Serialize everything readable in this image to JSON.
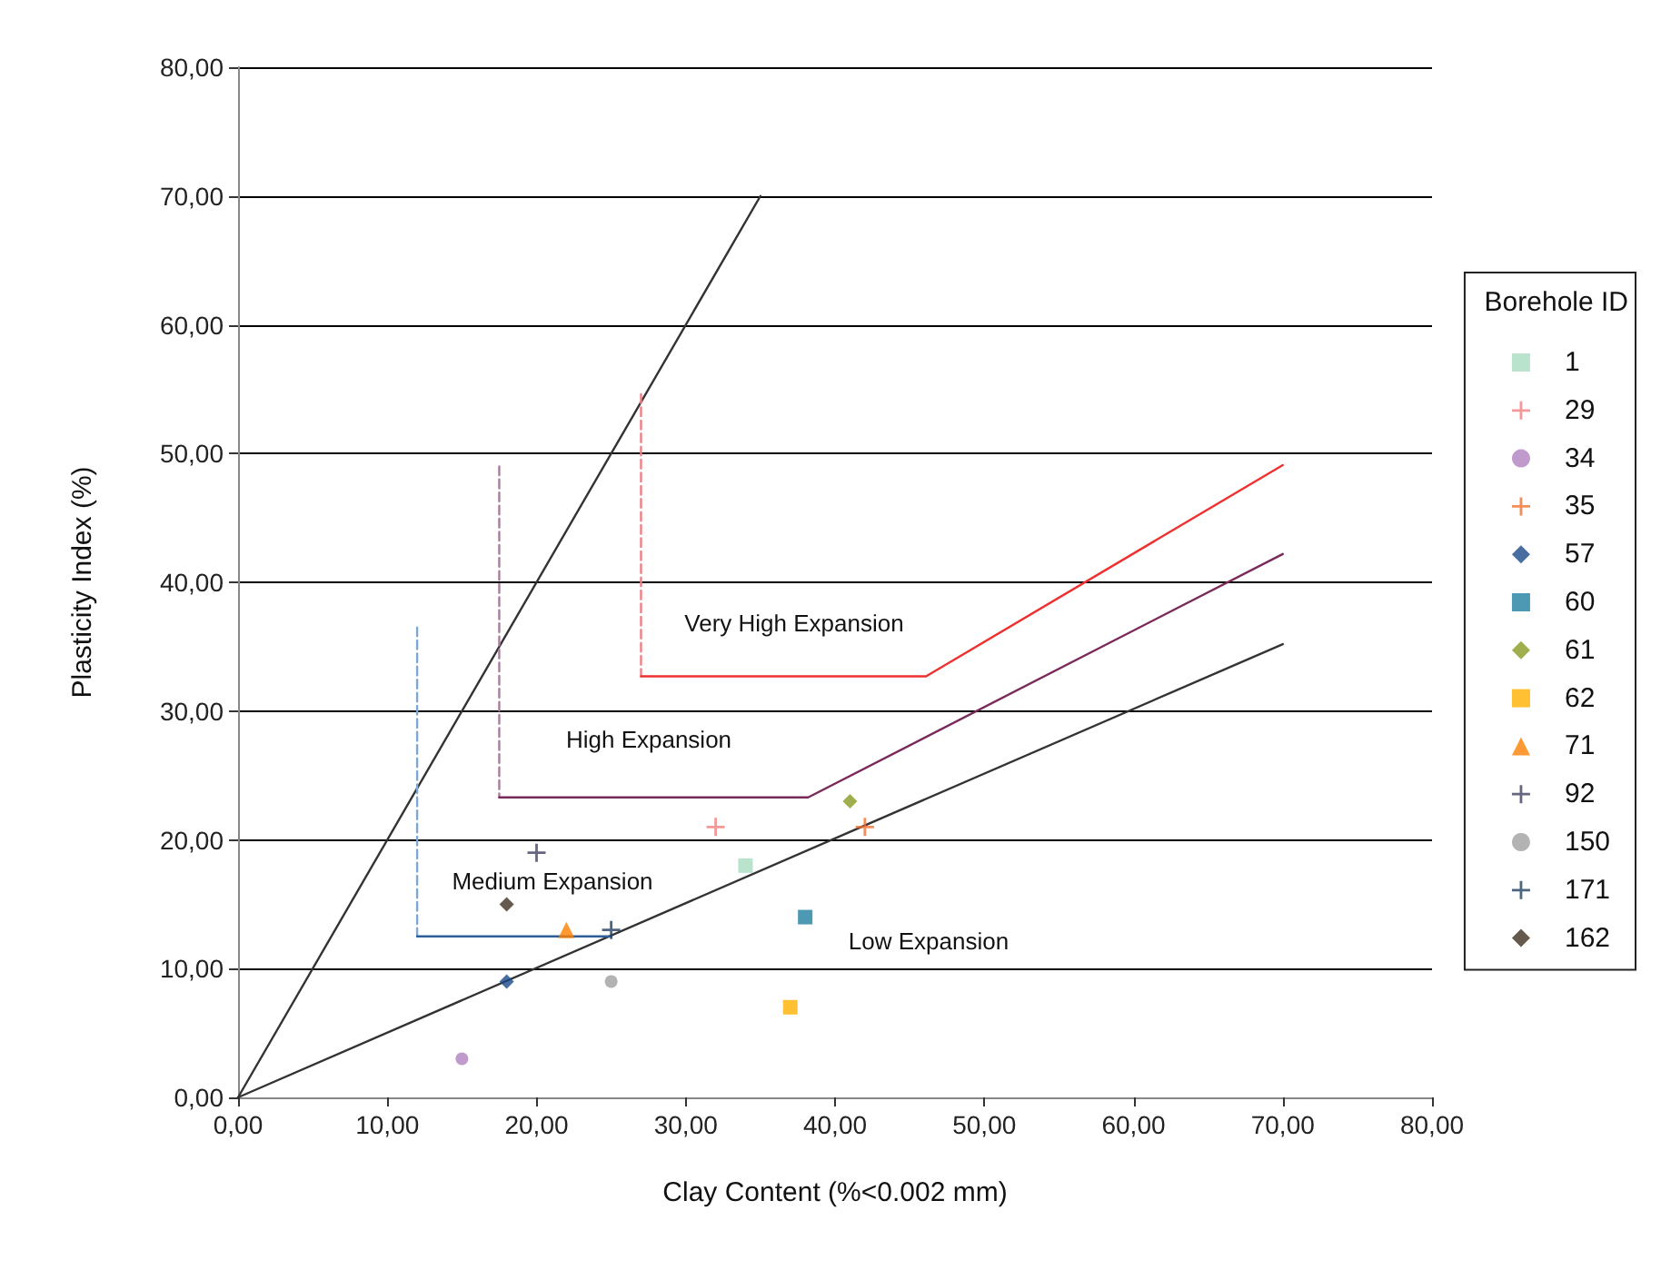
{
  "chart_data": {
    "type": "scatter",
    "xlabel": "Clay Content (%<0.002 mm)",
    "ylabel": "Plasticity Index (%)",
    "legend_title": "Borehole ID",
    "legend": "right",
    "grid": "y",
    "xlim": [
      0,
      80
    ],
    "ylim": [
      0,
      80
    ],
    "xticks": [
      {
        "value": 0,
        "label": "0,00"
      },
      {
        "value": 10,
        "label": "10,00"
      },
      {
        "value": 20,
        "label": "20,00"
      },
      {
        "value": 30,
        "label": "30,00"
      },
      {
        "value": 40,
        "label": "40,00"
      },
      {
        "value": 50,
        "label": "50,00"
      },
      {
        "value": 60,
        "label": "60,00"
      },
      {
        "value": 70,
        "label": "70,00"
      },
      {
        "value": 80,
        "label": "80,00"
      }
    ],
    "yticks": [
      {
        "value": 0,
        "label": "0,00"
      },
      {
        "value": 10,
        "label": "10,00"
      },
      {
        "value": 20,
        "label": "20,00"
      },
      {
        "value": 30,
        "label": "30,00"
      },
      {
        "value": 40,
        "label": "40,00"
      },
      {
        "value": 50,
        "label": "50,00"
      },
      {
        "value": 60,
        "label": "60,00"
      },
      {
        "value": 70,
        "label": "70,00"
      },
      {
        "value": 80,
        "label": "80,00"
      }
    ],
    "annotations": [
      "Very High Expansion",
      "High Expansion",
      "Medium Expansion",
      "Low Expansion"
    ],
    "series": [
      {
        "name": "1",
        "color": "#a8dcc0",
        "marker": "square",
        "x": [
          34
        ],
        "values": [
          18
        ]
      },
      {
        "name": "29",
        "color": "#f08080",
        "marker": "cross",
        "x": [
          32
        ],
        "values": [
          21
        ]
      },
      {
        "name": "34",
        "color": "#b080c0",
        "marker": "circle",
        "x": [
          15
        ],
        "values": [
          3
        ]
      },
      {
        "name": "35",
        "color": "#f07030",
        "marker": "cross",
        "x": [
          42
        ],
        "values": [
          21
        ]
      },
      {
        "name": "57",
        "color": "#1a4a8a",
        "marker": "diamond",
        "x": [
          18
        ],
        "values": [
          9
        ]
      },
      {
        "name": "60",
        "color": "#2080a0",
        "marker": "square",
        "x": [
          38
        ],
        "values": [
          14
        ]
      },
      {
        "name": "61",
        "color": "#8a9a20",
        "marker": "diamond",
        "x": [
          41
        ],
        "values": [
          23
        ]
      },
      {
        "name": "62",
        "color": "#ffb000",
        "marker": "square",
        "x": [
          37
        ],
        "values": [
          7
        ]
      },
      {
        "name": "71",
        "color": "#ff8000",
        "marker": "triangle",
        "x": [
          22
        ],
        "values": [
          13
        ]
      },
      {
        "name": "92",
        "color": "#404060",
        "marker": "cross",
        "x": [
          20
        ],
        "values": [
          19
        ]
      },
      {
        "name": "150",
        "color": "#a0a0a0",
        "marker": "circle",
        "x": [
          25
        ],
        "values": [
          9
        ]
      },
      {
        "name": "171",
        "color": "#204060",
        "marker": "cross",
        "x": [
          25
        ],
        "values": [
          13
        ]
      },
      {
        "name": "162",
        "color": "#403020",
        "marker": "diamond",
        "x": [
          18
        ],
        "values": [
          15
        ]
      },
      {
        "type": "line",
        "color": "#333333",
        "marker": "none",
        "line_style": "solid",
        "x": [
          0,
          35
        ],
        "values": [
          0,
          70
        ]
      },
      {
        "type": "line",
        "color": "#333333",
        "marker": "none",
        "line_style": "solid",
        "x": [
          0,
          70
        ],
        "values": [
          0,
          35.2
        ]
      },
      {
        "type": "line",
        "color": "#7fa7d0",
        "marker": "none",
        "line_style": "dashed",
        "x": [
          12,
          12
        ],
        "values": [
          36.5,
          12.5
        ]
      },
      {
        "type": "line",
        "color": "#2f5f9a",
        "marker": "none",
        "line_style": "solid",
        "x": [
          12,
          25
        ],
        "values": [
          12.5,
          12.5
        ]
      },
      {
        "type": "line",
        "color": "#a87c9a",
        "marker": "none",
        "line_style": "dashed",
        "x": [
          17.5,
          17.5
        ],
        "values": [
          49,
          23.3
        ]
      },
      {
        "type": "line",
        "color": "#7a2a5a",
        "marker": "none",
        "line_style": "solid",
        "x": [
          17.5,
          38.2,
          70
        ],
        "values": [
          23.3,
          23.3,
          42.2
        ]
      },
      {
        "type": "line",
        "color": "#f08088",
        "marker": "none",
        "line_style": "dashed",
        "x": [
          27,
          27
        ],
        "values": [
          54.6,
          32.7
        ]
      },
      {
        "type": "line",
        "color": "#ee3030",
        "marker": "none",
        "line_style": "solid",
        "x": [
          27,
          46.1,
          70
        ],
        "values": [
          32.7,
          32.7,
          49.1
        ]
      }
    ]
  }
}
